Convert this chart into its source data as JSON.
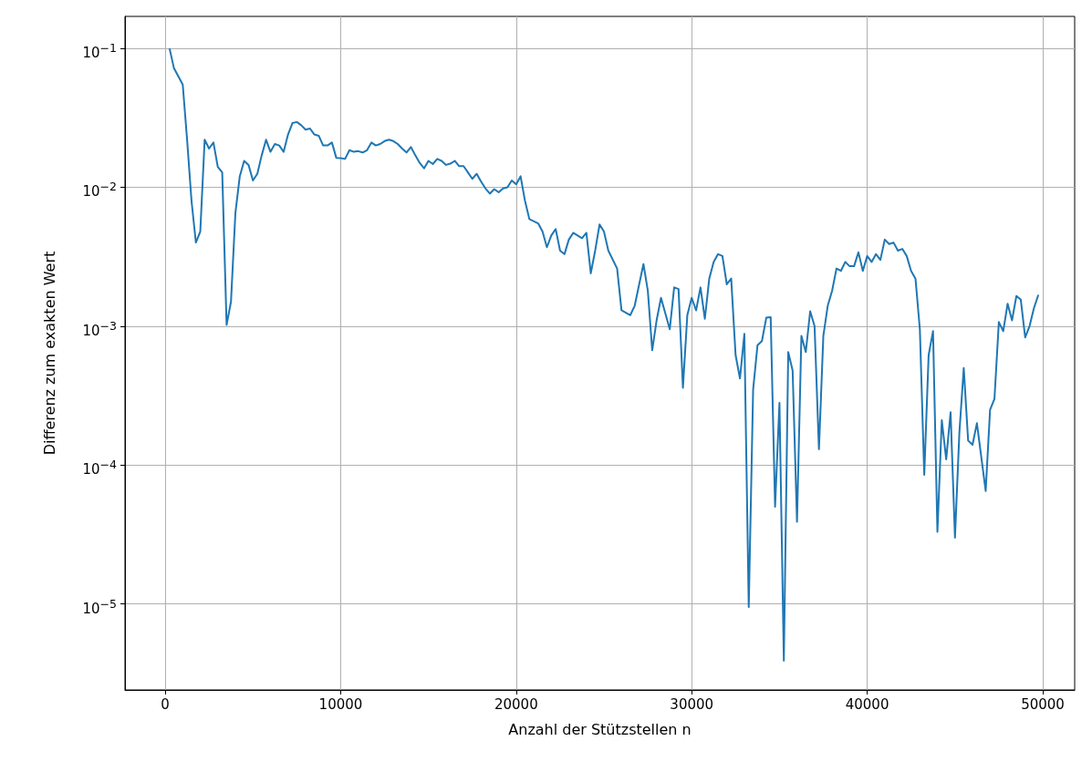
{
  "chart_data": {
    "type": "line",
    "xlabel": "Anzahl der Stützstellen n",
    "ylabel": "Differenz zum exakten Wert",
    "log": "y",
    "grid": true,
    "marker": "none",
    "line_style": "solid",
    "xlim": [
      -2290,
      51820
    ],
    "xticks": [
      0,
      10000,
      20000,
      30000,
      40000,
      50000
    ],
    "ylim": [
      2.4e-06,
      0.17
    ],
    "yticks": [
      {
        "value": 1e-05,
        "label": "10$^{−5}$"
      },
      {
        "value": 0.0001,
        "label": "10$^{−4}$"
      },
      {
        "value": 0.001,
        "label": "10$^{−3}$"
      },
      {
        "value": 0.01,
        "label": "10$^{−2}$"
      },
      {
        "value": 0.1,
        "label": "10$^{−1}$"
      }
    ],
    "series": [
      {
        "color": "#1f77b4",
        "x": [
          250,
          500,
          1000,
          1250,
          1500,
          1750,
          2000,
          2250,
          2500,
          2750,
          3000,
          3250,
          3500,
          3750,
          4000,
          4250,
          4500,
          4750,
          5000,
          5250,
          5500,
          5750,
          6000,
          6250,
          6500,
          6750,
          7000,
          7250,
          7500,
          7750,
          8000,
          8250,
          8500,
          8750,
          9000,
          9250,
          9500,
          9750,
          10000,
          10250,
          10500,
          10750,
          11000,
          11250,
          11500,
          11750,
          12000,
          12250,
          12500,
          12750,
          13000,
          13250,
          13500,
          13750,
          14000,
          14250,
          14500,
          14750,
          15000,
          15250,
          15500,
          15750,
          16000,
          16250,
          16500,
          16750,
          17000,
          17250,
          17500,
          17750,
          18000,
          18250,
          18500,
          18750,
          19000,
          19250,
          19500,
          19750,
          20000,
          20250,
          20500,
          20750,
          21250,
          21500,
          21750,
          22000,
          22250,
          22500,
          22750,
          23000,
          23250,
          23500,
          23750,
          24000,
          24250,
          24500,
          24750,
          25000,
          25250,
          25750,
          26000,
          26500,
          26750,
          27250,
          27500,
          27750,
          28000,
          28250,
          28750,
          29000,
          29250,
          29500,
          29750,
          30000,
          30250,
          30500,
          30750,
          31000,
          31250,
          31500,
          31750,
          32000,
          32250,
          32500,
          32750,
          33000,
          33250,
          33500,
          33750,
          34000,
          34250,
          34500,
          34750,
          35000,
          35250,
          35500,
          35750,
          36000,
          36250,
          36500,
          36750,
          37000,
          37250,
          37500,
          37750,
          38000,
          38250,
          38500,
          38750,
          39000,
          39250,
          39500,
          39750,
          40000,
          40250,
          40500,
          40750,
          41000,
          41250,
          41500,
          41750,
          42000,
          42250,
          42500,
          42750,
          43000,
          43250,
          43500,
          43750,
          44000,
          44250,
          44500,
          44750,
          45000,
          45250,
          45500,
          45750,
          46000,
          46250,
          46750,
          47000,
          47250,
          47500,
          47750,
          48000,
          48250,
          48500,
          48750,
          49000,
          49250,
          49500,
          49750
        ],
        "values": [
          0.1,
          0.072,
          0.055,
          0.022,
          0.008,
          0.004,
          0.0048,
          0.022,
          0.019,
          0.021,
          0.014,
          0.0128,
          0.00102,
          0.0015,
          0.0065,
          0.012,
          0.0155,
          0.0145,
          0.0112,
          0.0125,
          0.017,
          0.022,
          0.018,
          0.0205,
          0.02,
          0.018,
          0.024,
          0.029,
          0.0295,
          0.028,
          0.026,
          0.0265,
          0.024,
          0.0235,
          0.02,
          0.02,
          0.021,
          0.0163,
          0.0162,
          0.016,
          0.0185,
          0.018,
          0.0182,
          0.0178,
          0.0185,
          0.021,
          0.02,
          0.0205,
          0.0215,
          0.022,
          0.0215,
          0.0205,
          0.019,
          0.0178,
          0.0195,
          0.017,
          0.015,
          0.0137,
          0.0155,
          0.0147,
          0.016,
          0.0155,
          0.0145,
          0.0148,
          0.0155,
          0.0142,
          0.0142,
          0.0128,
          0.0115,
          0.0125,
          0.011,
          0.0098,
          0.009,
          0.0097,
          0.0092,
          0.0098,
          0.01,
          0.0112,
          0.0105,
          0.012,
          0.008,
          0.0059,
          0.0055,
          0.0048,
          0.0037,
          0.0045,
          0.005,
          0.0035,
          0.0033,
          0.0042,
          0.0047,
          0.0045,
          0.0043,
          0.0047,
          0.0024,
          0.0035,
          0.0054,
          0.0048,
          0.0035,
          0.0026,
          0.0013,
          0.0012,
          0.0014,
          0.0028,
          0.0018,
          0.00067,
          0.0011,
          0.0016,
          0.00095,
          0.0019,
          0.00185,
          0.00036,
          0.0012,
          0.0016,
          0.0013,
          0.0019,
          0.00113,
          0.0022,
          0.0029,
          0.0033,
          0.0032,
          0.002,
          0.0022,
          0.00062,
          0.00042,
          0.00088,
          9.5e-06,
          0.00035,
          0.00073,
          0.00078,
          0.00115,
          0.00116,
          5e-05,
          0.00028,
          3.9e-06,
          0.00065,
          0.00048,
          3.9e-05,
          0.00085,
          0.00065,
          0.00128,
          0.001,
          0.00013,
          0.00085,
          0.0014,
          0.0018,
          0.0026,
          0.0025,
          0.0029,
          0.0027,
          0.0027,
          0.0034,
          0.0025,
          0.0032,
          0.0029,
          0.0033,
          0.003,
          0.0042,
          0.0039,
          0.004,
          0.0035,
          0.0036,
          0.0032,
          0.0025,
          0.0022,
          0.00095,
          8.5e-05,
          0.00062,
          0.00092,
          3.3e-05,
          0.00021,
          0.00011,
          0.00024,
          3e-05,
          0.00017,
          0.0005,
          0.00015,
          0.00014,
          0.0002,
          6.5e-05,
          0.00025,
          0.0003,
          0.00107,
          0.00092,
          0.00145,
          0.0011,
          0.00165,
          0.00155,
          0.00083,
          0.001,
          0.00135,
          0.00168
        ]
      }
    ]
  }
}
